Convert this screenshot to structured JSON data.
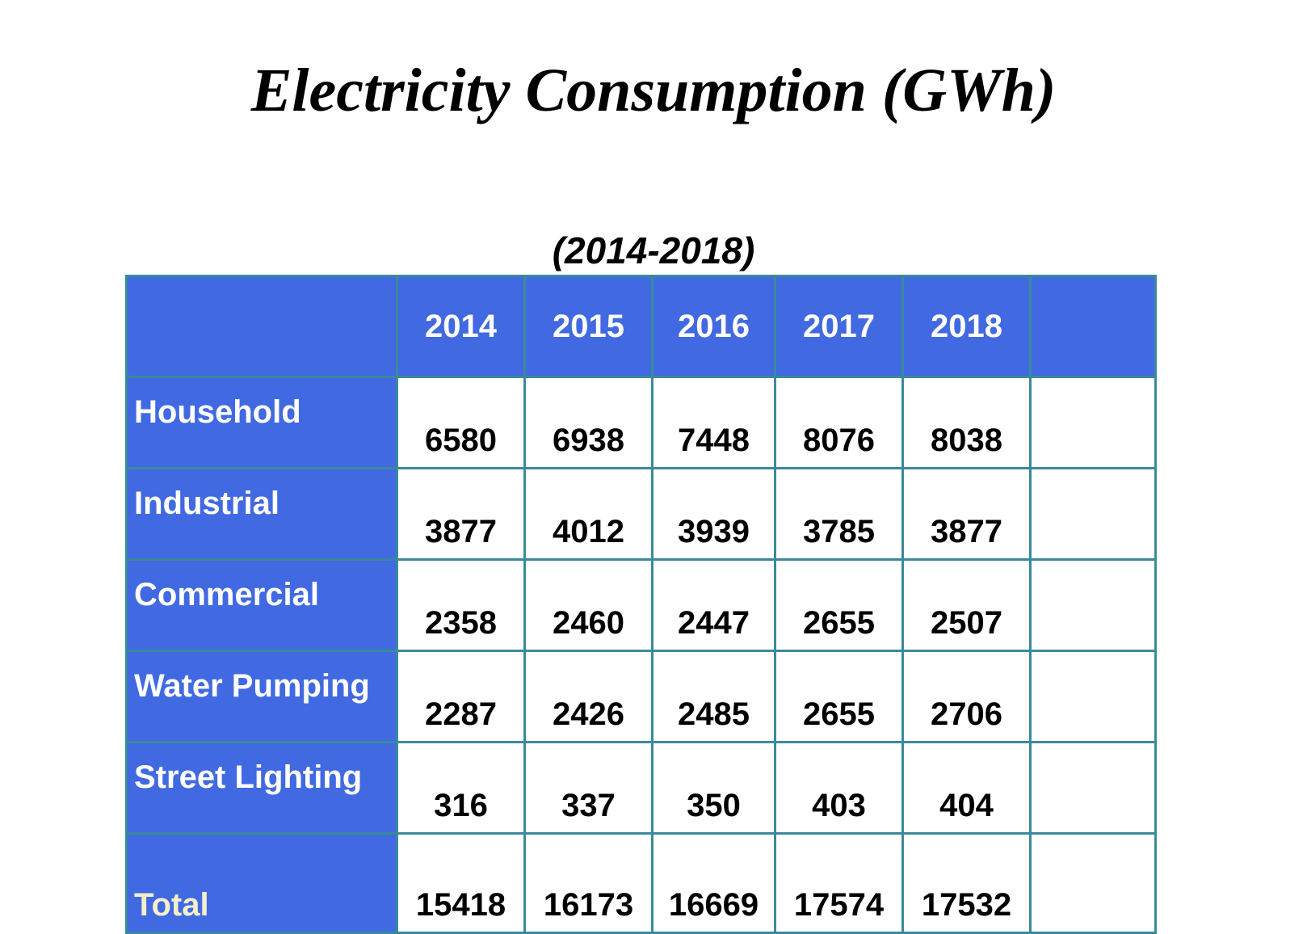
{
  "page": {
    "title": "Electricity Consumption (GWh)",
    "subtitle": "(2014-2018)"
  },
  "colors": {
    "header_background": "#4169e1",
    "grid_border": "#3a8a9a",
    "header_text": "#ffffff",
    "total_label_text": "#f4f0c8"
  },
  "table": {
    "columns": [
      "",
      "2014",
      "2015",
      "2016",
      "2017",
      "2018",
      ""
    ],
    "rows": [
      {
        "label": "Household",
        "values": [
          "6580",
          "6938",
          "7448",
          "8076",
          "8038"
        ]
      },
      {
        "label": "Industrial",
        "values": [
          "3877",
          "4012",
          "3939",
          "3785",
          "3877"
        ]
      },
      {
        "label": "Commercial",
        "values": [
          "2358",
          "2460",
          "2447",
          "2655",
          "2507"
        ]
      },
      {
        "label": "Water Pumping",
        "values": [
          "2287",
          "2426",
          "2485",
          "2655",
          "2706"
        ]
      },
      {
        "label": "Street Lighting",
        "values": [
          "316",
          "337",
          "350",
          "403",
          "404"
        ]
      }
    ],
    "total": {
      "label": "Total",
      "values": [
        "15418",
        "16173",
        "16669",
        "17574",
        "17532"
      ]
    }
  }
}
